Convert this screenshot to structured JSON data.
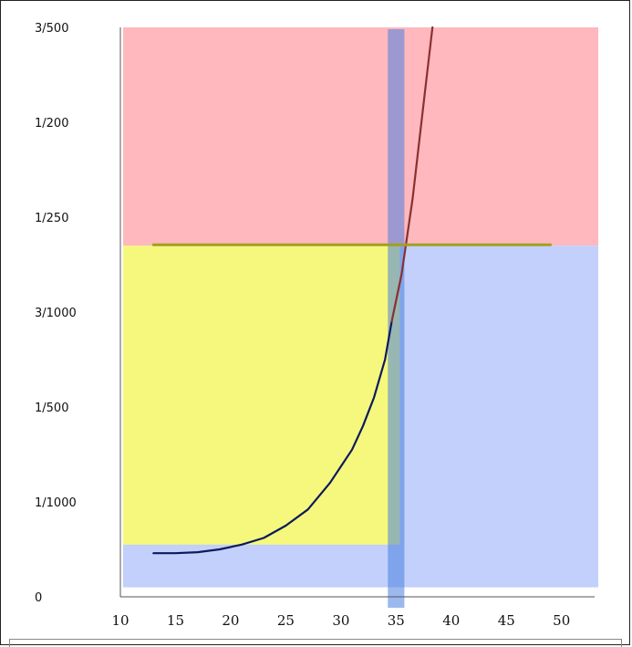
{
  "chart_data": {
    "type": "line",
    "title": "",
    "xlabel": "",
    "ylabel": "",
    "xlim": [
      10,
      53
    ],
    "ylim": [
      0,
      0.006
    ],
    "x_ticks": [
      {
        "value": 10,
        "label": "10"
      },
      {
        "value": 15,
        "label": "15"
      },
      {
        "value": 20,
        "label": "20"
      },
      {
        "value": 25,
        "label": "25"
      },
      {
        "value": 30,
        "label": "30"
      },
      {
        "value": 35,
        "label": "35"
      },
      {
        "value": 40,
        "label": "40"
      },
      {
        "value": 45,
        "label": "45"
      },
      {
        "value": 50,
        "label": "50"
      }
    ],
    "y_ticks": [
      {
        "value": 0,
        "label": "0"
      },
      {
        "value": 0.001,
        "label": "1/1000"
      },
      {
        "value": 0.002,
        "label": "1/500"
      },
      {
        "value": 0.003,
        "label": "3/1000"
      },
      {
        "value": 0.004,
        "label": "1/250"
      },
      {
        "value": 0.005,
        "label": "1/200"
      },
      {
        "value": 0.006,
        "label": "3/500"
      }
    ],
    "grid": false,
    "regions": [
      {
        "name": "high-risk-zone",
        "color": "#ffb8be",
        "x_range": [
          10,
          53
        ],
        "y_range": [
          0.0037,
          0.006
        ]
      },
      {
        "name": "low-risk-zone",
        "color": "#c2d0fb",
        "x_range": [
          10,
          53
        ],
        "y_range": [
          0.0001,
          0.0037
        ]
      },
      {
        "name": "safe-zone",
        "color": "#ffff66",
        "x_range": [
          10,
          35
        ],
        "y_range": [
          0.00055,
          0.0037
        ]
      }
    ],
    "series": [
      {
        "color": "#0d1a5c",
        "x": [
          13,
          15,
          17,
          19,
          21,
          23,
          25,
          27,
          29,
          31,
          32,
          33,
          34,
          34.6
        ],
        "y": [
          0.00046,
          0.00046,
          0.00047,
          0.0005,
          0.00055,
          0.00062,
          0.00075,
          0.00092,
          0.0012,
          0.00155,
          0.0018,
          0.0021,
          0.0025,
          0.0029
        ]
      },
      {
        "color": "#8a3030",
        "x": [
          34.6,
          35.5,
          36.5,
          37.3,
          38.3
        ],
        "y": [
          0.0029,
          0.0034,
          0.0042,
          0.005,
          0.006
        ]
      },
      {
        "color": "#a1a020",
        "x": [
          13,
          49
        ],
        "y": [
          0.00371,
          0.00371
        ]
      }
    ],
    "vertical_band": {
      "x_center": 35,
      "width": 1.5,
      "color": "#4a7fdf",
      "y_range": [
        0,
        0.006
      ]
    }
  }
}
